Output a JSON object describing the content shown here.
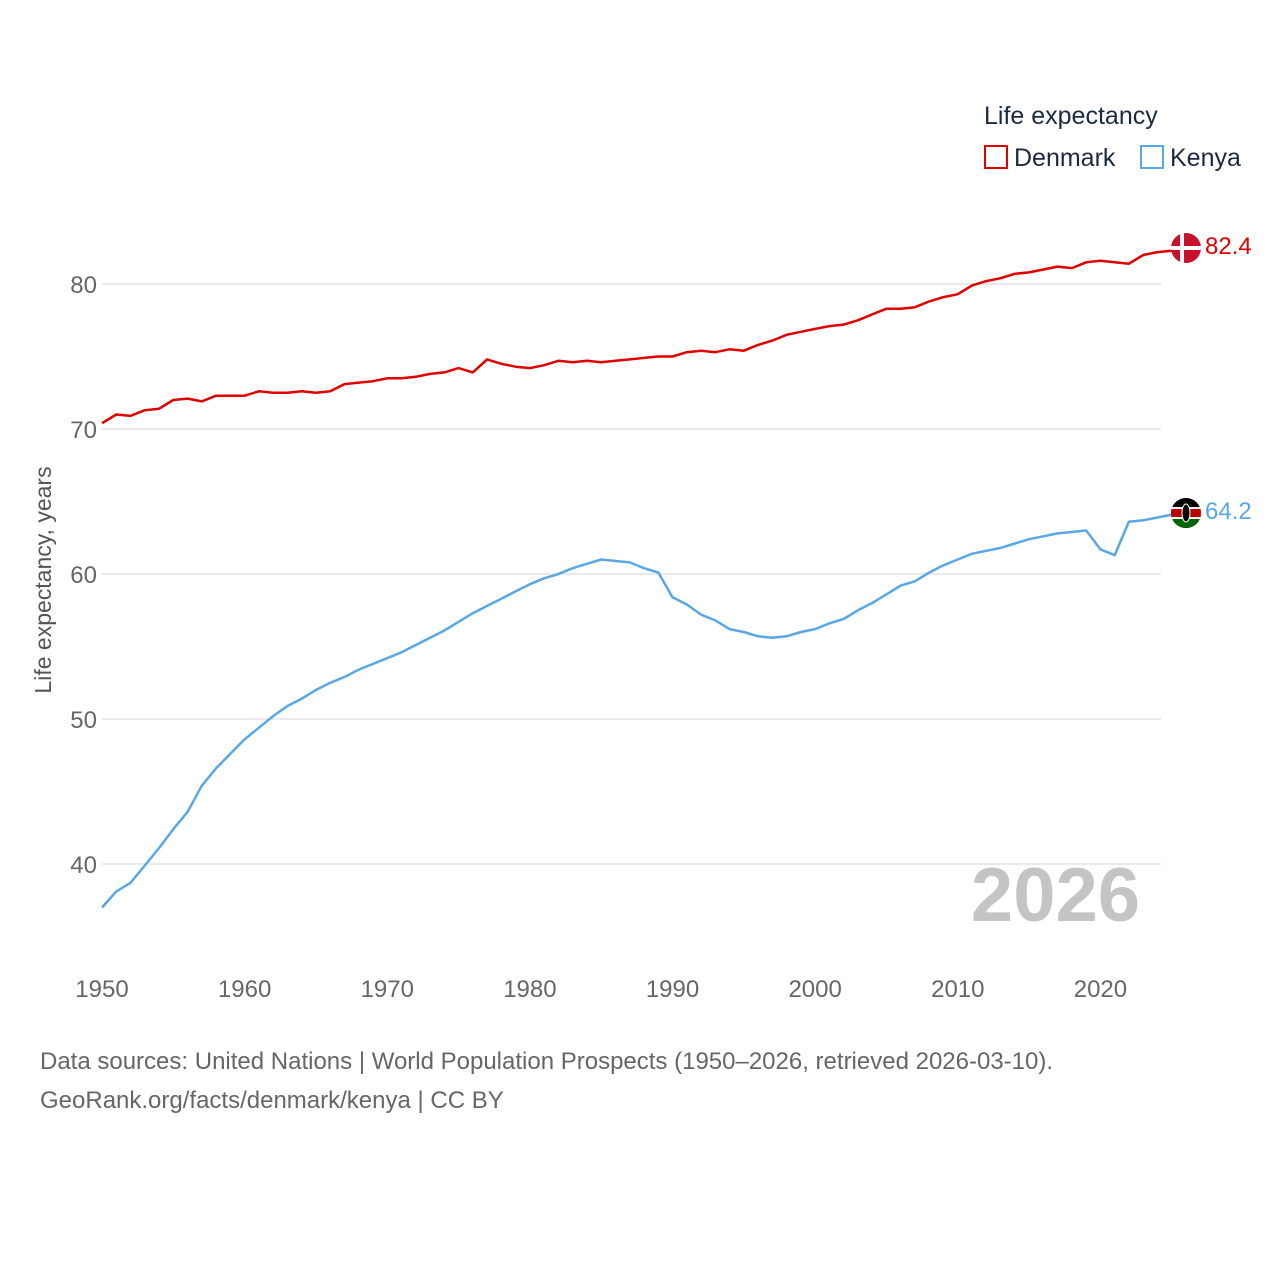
{
  "chart_data": {
    "type": "line",
    "legend_title": "Life expectancy",
    "ylabel": "Life expectancy, years",
    "xlabel": "",
    "xlim": [
      1950,
      2026
    ],
    "ylim": [
      35,
      89
    ],
    "yticks": [
      40,
      50,
      60,
      70,
      80
    ],
    "xticks": [
      1950,
      1960,
      1970,
      1980,
      1990,
      2000,
      2010,
      2020
    ],
    "current_year": "2026",
    "x": [
      1950,
      1951,
      1952,
      1953,
      1954,
      1955,
      1956,
      1957,
      1958,
      1959,
      1960,
      1961,
      1962,
      1963,
      1964,
      1965,
      1966,
      1967,
      1968,
      1969,
      1970,
      1971,
      1972,
      1973,
      1974,
      1975,
      1976,
      1977,
      1978,
      1979,
      1980,
      1981,
      1982,
      1983,
      1984,
      1985,
      1986,
      1987,
      1988,
      1989,
      1990,
      1991,
      1992,
      1993,
      1994,
      1995,
      1996,
      1997,
      1998,
      1999,
      2000,
      2001,
      2002,
      2003,
      2004,
      2005,
      2006,
      2007,
      2008,
      2009,
      2010,
      2011,
      2012,
      2013,
      2014,
      2015,
      2016,
      2017,
      2018,
      2019,
      2020,
      2021,
      2022,
      2023,
      2024,
      2025,
      2026
    ],
    "series": [
      {
        "name": "Denmark",
        "color": "#e00000",
        "end_label": "82.4",
        "values": [
          70.4,
          71.0,
          70.9,
          71.3,
          71.4,
          72.0,
          72.1,
          71.9,
          72.3,
          72.3,
          72.3,
          72.6,
          72.5,
          72.5,
          72.6,
          72.5,
          72.6,
          73.1,
          73.2,
          73.3,
          73.5,
          73.5,
          73.6,
          73.8,
          73.9,
          74.2,
          73.9,
          74.8,
          74.5,
          74.3,
          74.2,
          74.4,
          74.7,
          74.6,
          74.7,
          74.6,
          74.7,
          74.8,
          74.9,
          75.0,
          75.0,
          75.3,
          75.4,
          75.3,
          75.5,
          75.4,
          75.8,
          76.1,
          76.5,
          76.7,
          76.9,
          77.1,
          77.2,
          77.5,
          77.9,
          78.3,
          78.3,
          78.4,
          78.8,
          79.1,
          79.3,
          79.9,
          80.2,
          80.4,
          80.7,
          80.8,
          81.0,
          81.2,
          81.1,
          81.5,
          81.6,
          81.5,
          81.4,
          82.0,
          82.2,
          82.3,
          82.4
        ]
      },
      {
        "name": "Kenya",
        "color": "#5aa7e6",
        "end_label": "64.2",
        "values": [
          37.0,
          38.1,
          38.7,
          39.9,
          41.1,
          42.4,
          43.6,
          45.4,
          46.6,
          47.6,
          48.6,
          49.4,
          50.2,
          50.9,
          51.4,
          52.0,
          52.5,
          52.9,
          53.4,
          53.8,
          54.2,
          54.6,
          55.1,
          55.6,
          56.1,
          56.7,
          57.3,
          57.8,
          58.3,
          58.8,
          59.3,
          59.7,
          60.0,
          60.4,
          60.7,
          61.0,
          60.9,
          60.8,
          60.4,
          60.1,
          58.4,
          57.9,
          57.2,
          56.8,
          56.2,
          56.0,
          55.7,
          55.6,
          55.7,
          56.0,
          56.2,
          56.6,
          56.9,
          57.5,
          58.0,
          58.6,
          59.2,
          59.5,
          60.1,
          60.6,
          61.0,
          61.4,
          61.6,
          61.8,
          62.1,
          62.4,
          62.6,
          62.8,
          62.9,
          63.0,
          61.7,
          61.3,
          63.6,
          63.7,
          63.9,
          64.1,
          64.2
        ]
      }
    ]
  },
  "footer": {
    "line1": "Data sources: United Nations | World Population Prospects (1950–2026, retrieved 2026-03-10).",
    "line2": "GeoRank.org/facts/denmark/kenya | CC BY"
  }
}
